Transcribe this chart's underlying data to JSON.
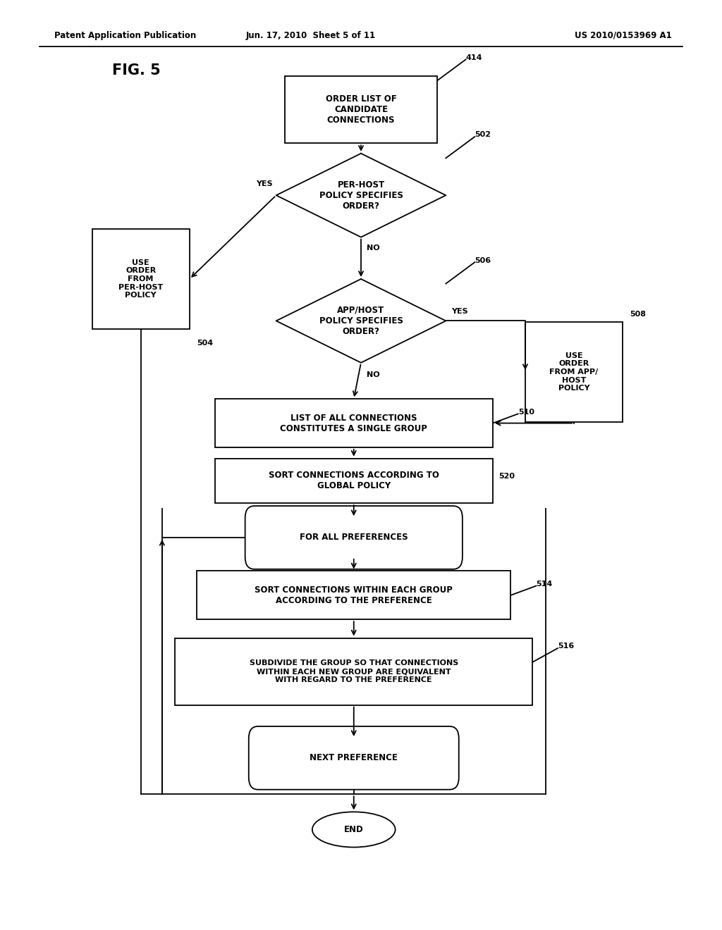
{
  "header_left": "Patent Application Publication",
  "header_mid": "Jun. 17, 2010  Sheet 5 of 11",
  "header_right": "US 2010/0153969 A1",
  "fig_label": "FIG. 5",
  "background_color": "#ffffff",
  "lw": 1.3,
  "fs_label": 8.0,
  "fs_header": 8.5,
  "fs_fig": 15,
  "n414": [
    0.5,
    0.882,
    0.21,
    0.072
  ],
  "n502": [
    0.5,
    0.79,
    0.235,
    0.09
  ],
  "n504": [
    0.195,
    0.7,
    0.135,
    0.108
  ],
  "n506": [
    0.5,
    0.655,
    0.235,
    0.09
  ],
  "n508": [
    0.795,
    0.6,
    0.135,
    0.108
  ],
  "n510": [
    0.49,
    0.545,
    0.385,
    0.052
  ],
  "n520": [
    0.49,
    0.483,
    0.385,
    0.048
  ],
  "n512": [
    0.49,
    0.422,
    0.275,
    0.042
  ],
  "n514": [
    0.49,
    0.36,
    0.435,
    0.052
  ],
  "n516": [
    0.49,
    0.278,
    0.495,
    0.072
  ],
  "n518": [
    0.49,
    0.185,
    0.265,
    0.042
  ],
  "nEND": [
    0.49,
    0.108,
    0.115,
    0.038
  ],
  "label414": "ORDER LIST OF\nCANDIDATE\nCONNECTIONS",
  "label502": "PER-HOST\nPOLICY SPECIFIES\nORDER?",
  "label504": "USE\nORDER\nFROM\nPER-HOST\nPOLICY",
  "label506": "APP/HOST\nPOLICY SPECIFIES\nORDER?",
  "label508": "USE\nORDER\nFROM APP/\nHOST\nPOLICY",
  "label510": "LIST OF ALL CONNECTIONS\nCONSTITUTES A SINGLE GROUP",
  "label520": "SORT CONNECTIONS ACCORDING TO\nGLOBAL POLICY",
  "label512": "FOR ALL PREFERENCES",
  "label514": "SORT CONNECTIONS WITHIN EACH GROUP\nACCORDING TO THE PREFERENCE",
  "label516": "SUBDIVIDE THE GROUP SO THAT CONNECTIONS\nWITHIN EACH NEW GROUP ARE EQUIVALENT\nWITH REGARD TO THE PREFERENCE",
  "label518": "NEXT PREFERENCE",
  "labelEND": "END",
  "id414": "414",
  "id502": "502",
  "id504": "504",
  "id506": "506",
  "id508": "508",
  "id510": "510",
  "id520": "520",
  "id514": "514",
  "id516": "516"
}
